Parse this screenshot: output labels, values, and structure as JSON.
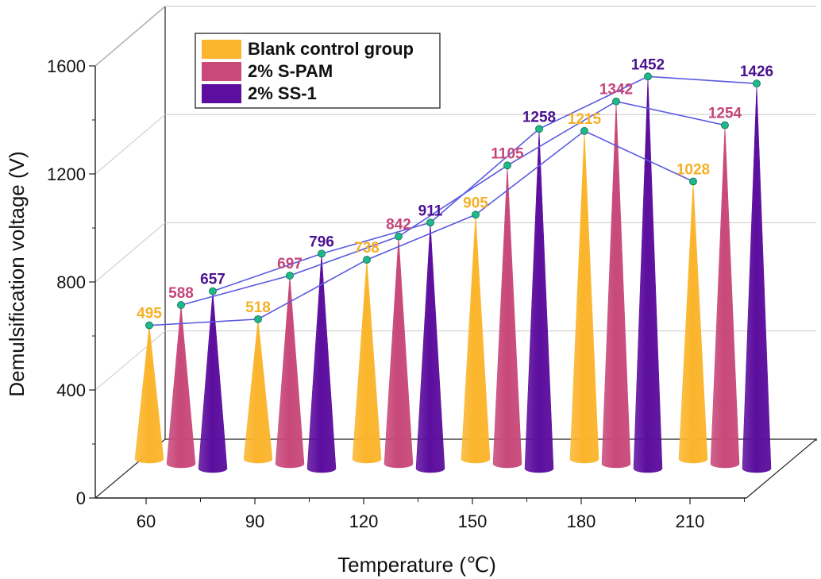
{
  "chart_data": {
    "type": "bar",
    "subtype": "3d-cone",
    "xlabel": "Temperature (℃)",
    "ylabel": "Demulsification voltage (V)",
    "ylim": [
      0,
      1600
    ],
    "yticks": [
      0,
      400,
      800,
      1200,
      1600
    ],
    "categories": [
      "60",
      "90",
      "120",
      "150",
      "180",
      "210"
    ],
    "grid": true,
    "legend": "top-left",
    "series": [
      {
        "name": "Blank control group",
        "color": "#FBB52C",
        "label_color": "#F5B026",
        "values": [
          495,
          518,
          738,
          905,
          1215,
          1028
        ]
      },
      {
        "name": "2% S-PAM",
        "color": "#C8497A",
        "label_color": "#C5457A",
        "values": [
          588,
          697,
          842,
          1105,
          1342,
          1254
        ]
      },
      {
        "name": "2% SS-1",
        "color": "#5C0E9E",
        "label_color": "#4B1192",
        "values": [
          657,
          796,
          911,
          1258,
          1452,
          1426
        ]
      }
    ],
    "line_color": "#5A5AE0",
    "marker_color": "#1DB98A"
  }
}
